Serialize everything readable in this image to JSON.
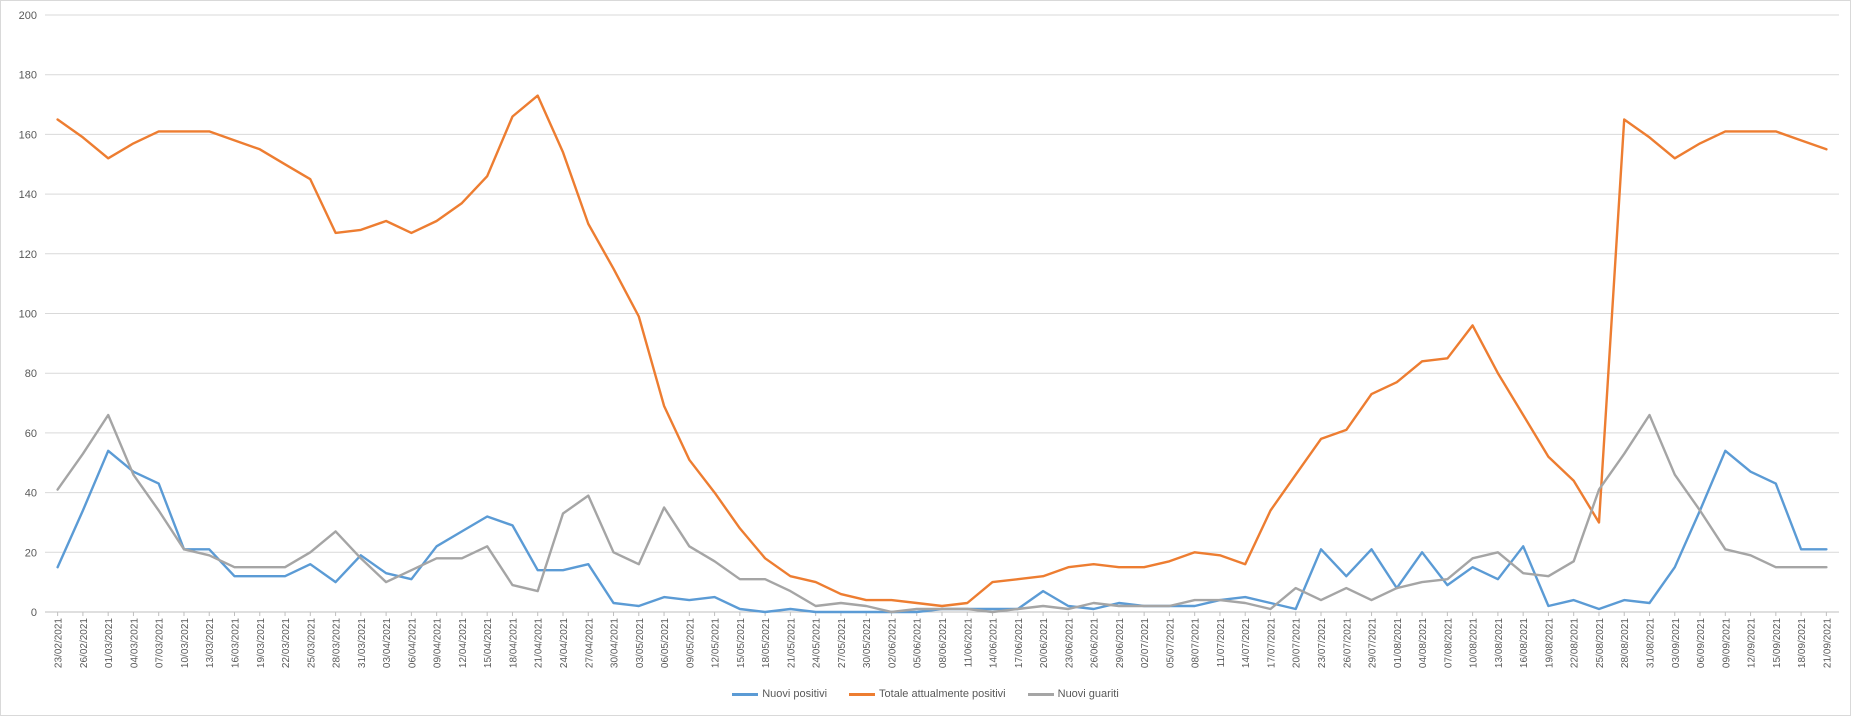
{
  "chart_data": {
    "type": "line",
    "title": "",
    "xlabel": "",
    "ylabel": "",
    "ylim": [
      0,
      200
    ],
    "yticks": [
      0,
      20,
      40,
      60,
      80,
      100,
      120,
      140,
      160,
      180,
      200
    ],
    "grid": true,
    "legend_position": "bottom",
    "categories": [
      "23/02/2021",
      "26/02/2021",
      "01/03/2021",
      "04/03/2021",
      "07/03/2021",
      "10/03/2021",
      "13/03/2021",
      "16/03/2021",
      "19/03/2021",
      "22/03/2021",
      "25/03/2021",
      "28/03/2021",
      "31/03/2021",
      "03/04/2021",
      "06/04/2021",
      "09/04/2021",
      "12/04/2021",
      "15/04/2021",
      "18/04/2021",
      "21/04/2021",
      "24/04/2021",
      "27/04/2021",
      "30/04/2021",
      "03/05/2021",
      "06/05/2021",
      "09/05/2021",
      "12/05/2021",
      "15/05/2021",
      "18/05/2021",
      "21/05/2021",
      "24/05/2021",
      "27/05/2021",
      "30/05/2021",
      "02/06/2021",
      "05/06/2021",
      "08/06/2021",
      "11/06/2021",
      "14/06/2021",
      "17/06/2021",
      "20/06/2021",
      "23/06/2021",
      "26/06/2021",
      "29/06/2021",
      "02/07/2021",
      "05/07/2021",
      "08/07/2021",
      "11/07/2021",
      "14/07/2021",
      "17/07/2021",
      "20/07/2021",
      "23/07/2021",
      "26/07/2021",
      "29/07/2021",
      "01/08/2021",
      "04/08/2021",
      "07/08/2021",
      "10/08/2021",
      "13/08/2021",
      "16/08/2021",
      "19/08/2021",
      "22/08/2021",
      "25/08/2021",
      "28/08/2021",
      "31/08/2021",
      "03/09/2021",
      "06/09/2021",
      "09/09/2021",
      "12/09/2021",
      "15/09/2021",
      "18/09/2021",
      "21/09/2021"
    ],
    "series": [
      {
        "name": "Nuovi positivi",
        "color": "#5b9bd5",
        "values": [
          15,
          34,
          54,
          47,
          43,
          21,
          21,
          12,
          12,
          12,
          16,
          10,
          19,
          13,
          11,
          22,
          27,
          32,
          29,
          14,
          14,
          16,
          3,
          2,
          5,
          4,
          5,
          1,
          0,
          1,
          0,
          0,
          0,
          0,
          0,
          1,
          1,
          1,
          1,
          7,
          2,
          1,
          3,
          2,
          2,
          2,
          4,
          5,
          3,
          1,
          21,
          12,
          21,
          8,
          20,
          9,
          15,
          11,
          22,
          2,
          4,
          1,
          4,
          3,
          15,
          34,
          54,
          47,
          43,
          21,
          21
        ]
      },
      {
        "name": "Totale attualmente positivi",
        "color": "#ed7d31",
        "values": [
          165,
          159,
          152,
          157,
          161,
          161,
          161,
          158,
          155,
          150,
          145,
          127,
          128,
          131,
          127,
          131,
          137,
          146,
          166,
          173,
          154,
          130,
          115,
          99,
          69,
          51,
          40,
          28,
          18,
          12,
          10,
          6,
          4,
          4,
          3,
          2,
          3,
          10,
          11,
          12,
          15,
          16,
          15,
          15,
          17,
          20,
          19,
          16,
          34,
          46,
          58,
          61,
          73,
          77,
          84,
          85,
          96,
          80,
          66,
          52,
          44,
          30,
          165,
          159,
          152,
          157,
          161,
          161,
          161,
          158,
          155
        ]
      },
      {
        "name": "Nuovi guariti",
        "color": "#a5a5a5",
        "values": [
          41,
          53,
          66,
          46,
          34,
          21,
          19,
          15,
          15,
          15,
          20,
          27,
          18,
          10,
          14,
          18,
          18,
          22,
          9,
          7,
          33,
          39,
          20,
          16,
          35,
          22,
          17,
          11,
          11,
          7,
          2,
          3,
          2,
          0,
          1,
          1,
          1,
          0,
          1,
          2,
          1,
          3,
          2,
          2,
          2,
          4,
          4,
          3,
          1,
          8,
          4,
          8,
          4,
          8,
          10,
          11,
          18,
          20,
          13,
          12,
          17,
          41,
          53,
          66,
          46,
          34,
          21,
          19,
          15,
          15,
          15
        ]
      }
    ]
  }
}
